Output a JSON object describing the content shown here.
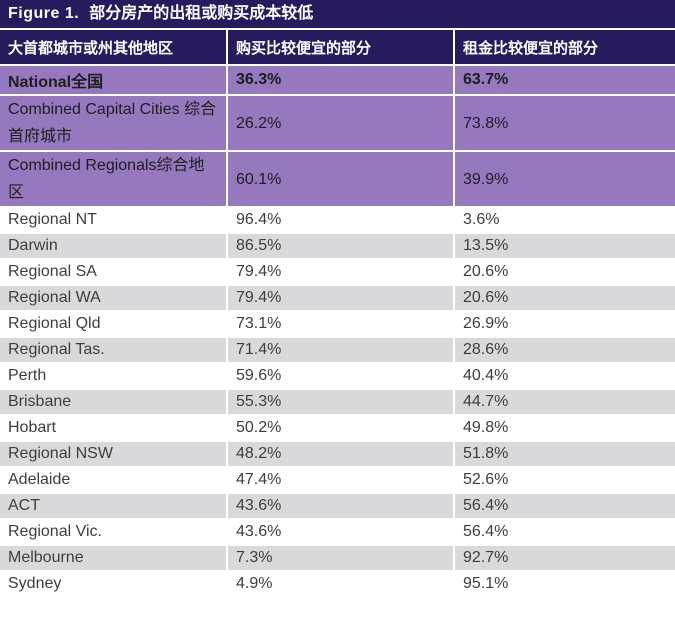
{
  "title_bar": {
    "figure_label": "Figure 1.",
    "title": "部分房产的出租或购买成本较低"
  },
  "table": {
    "columns": [
      "大首都城市或州其他地区",
      "购买比较便宜的部分",
      "租金比较便宜的部分"
    ],
    "rows": [
      {
        "region": "National全国",
        "buy": "36.3%",
        "rent": "63.7%",
        "style": "summary-bold"
      },
      {
        "region": "Combined Capital Cities 综合首府城市",
        "buy": "26.2%",
        "rent": "73.8%",
        "style": "summary"
      },
      {
        "region": "Combined Regionals综合地区",
        "buy": "60.1%",
        "rent": "39.9%",
        "style": "summary"
      },
      {
        "region": "Regional NT",
        "buy": "96.4%",
        "rent": "3.6%",
        "style": "zebra"
      },
      {
        "region": "Darwin",
        "buy": "86.5%",
        "rent": "13.5%",
        "style": "zebra"
      },
      {
        "region": "Regional SA",
        "buy": "79.4%",
        "rent": "20.6%",
        "style": "zebra"
      },
      {
        "region": "Regional WA",
        "buy": "79.4%",
        "rent": "20.6%",
        "style": "zebra"
      },
      {
        "region": "Regional Qld",
        "buy": "73.1%",
        "rent": "26.9%",
        "style": "zebra"
      },
      {
        "region": "Regional Tas.",
        "buy": "71.4%",
        "rent": "28.6%",
        "style": "zebra"
      },
      {
        "region": "Perth",
        "buy": "59.6%",
        "rent": "40.4%",
        "style": "zebra"
      },
      {
        "region": "Brisbane",
        "buy": "55.3%",
        "rent": "44.7%",
        "style": "zebra"
      },
      {
        "region": "Hobart",
        "buy": "50.2%",
        "rent": "49.8%",
        "style": "zebra"
      },
      {
        "region": "Regional NSW",
        "buy": "48.2%",
        "rent": "51.8%",
        "style": "zebra"
      },
      {
        "region": "Adelaide",
        "buy": "47.4%",
        "rent": "52.6%",
        "style": "zebra"
      },
      {
        "region": "ACT",
        "buy": "43.6%",
        "rent": "56.4%",
        "style": "zebra"
      },
      {
        "region": "Regional Vic.",
        "buy": "43.6%",
        "rent": "56.4%",
        "style": "zebra"
      },
      {
        "region": "Melbourne",
        "buy": "7.3%",
        "rent": "92.7%",
        "style": "zebra"
      },
      {
        "region": "Sydney",
        "buy": "4.9%",
        "rent": "95.1%",
        "style": "zebra"
      }
    ]
  },
  "chart_data": {
    "type": "table",
    "title": "Figure 1. 部分房产的出租或购买成本较低",
    "categories": [
      "National全国",
      "Combined Capital Cities 综合首府城市",
      "Combined Regionals综合地区",
      "Regional NT",
      "Darwin",
      "Regional SA",
      "Regional WA",
      "Regional Qld",
      "Regional Tas.",
      "Perth",
      "Brisbane",
      "Hobart",
      "Regional NSW",
      "Adelaide",
      "ACT",
      "Regional Vic.",
      "Melbourne",
      "Sydney"
    ],
    "series": [
      {
        "name": "购买比较便宜的部分",
        "values": [
          36.3,
          26.2,
          60.1,
          96.4,
          86.5,
          79.4,
          79.4,
          73.1,
          71.4,
          59.6,
          55.3,
          50.2,
          48.2,
          47.4,
          43.6,
          43.6,
          7.3,
          4.9
        ]
      },
      {
        "name": "租金比较便宜的部分",
        "values": [
          63.7,
          73.8,
          39.9,
          3.6,
          13.5,
          20.6,
          20.6,
          26.9,
          28.6,
          40.4,
          44.7,
          49.8,
          51.8,
          52.6,
          56.4,
          56.4,
          92.7,
          95.1
        ]
      }
    ],
    "unit": "%"
  },
  "colors": {
    "header_navy": "#271b5e",
    "summary_purple": "#9678be",
    "zebra_gray": "#d9d9dc",
    "separator_white": "#ffffff",
    "body_text": "#3d3d3d"
  }
}
